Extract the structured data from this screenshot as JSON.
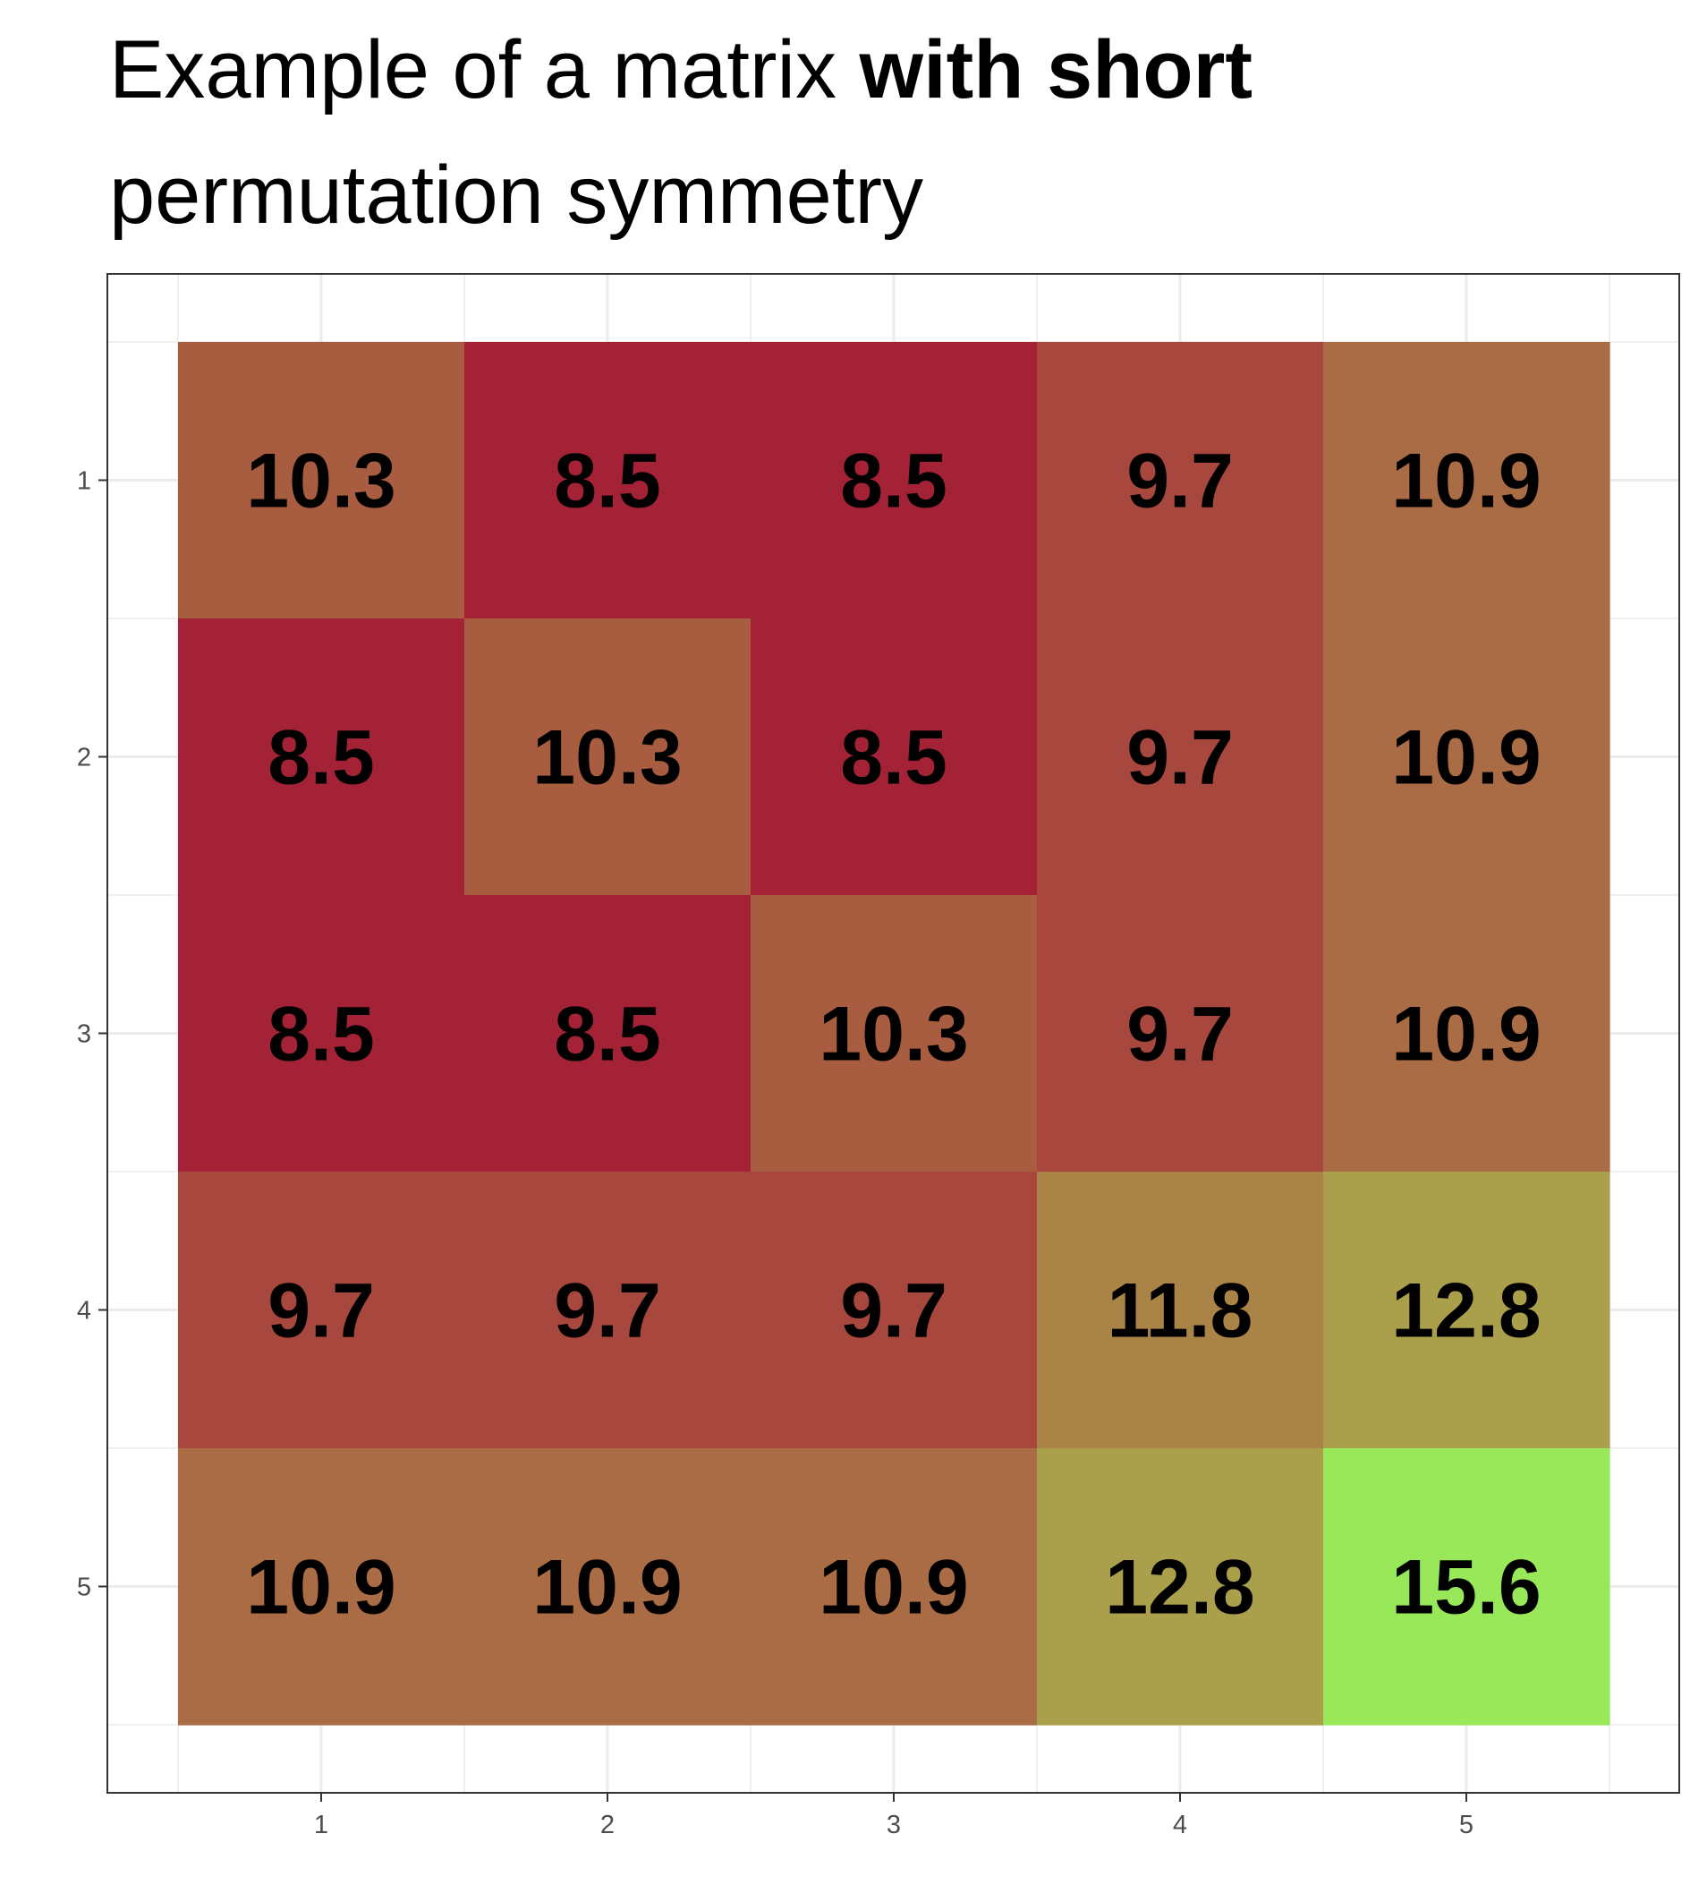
{
  "title": {
    "part1": "Example of a matrix ",
    "part2_bold": "with short",
    "line2": "permutation symmetry"
  },
  "chart_data": {
    "type": "heatmap",
    "title": "Example of a matrix with short permutation symmetry",
    "xlabel": "",
    "ylabel": "",
    "x_categories": [
      "1",
      "2",
      "3",
      "4",
      "5"
    ],
    "y_categories": [
      "1",
      "2",
      "3",
      "4",
      "5"
    ],
    "values": [
      [
        10.3,
        8.5,
        8.5,
        9.7,
        10.9
      ],
      [
        8.5,
        10.3,
        8.5,
        9.7,
        10.9
      ],
      [
        8.5,
        8.5,
        10.3,
        9.7,
        10.9
      ],
      [
        9.7,
        9.7,
        9.7,
        11.8,
        12.8
      ],
      [
        10.9,
        10.9,
        10.9,
        12.8,
        15.6
      ]
    ],
    "labels": [
      [
        "10.3",
        "8.5",
        "8.5",
        "9.7",
        "10.9"
      ],
      [
        "8.5",
        "10.3",
        "8.5",
        "9.7",
        "10.9"
      ],
      [
        "8.5",
        "8.5",
        "10.3",
        "9.7",
        "10.9"
      ],
      [
        "9.7",
        "9.7",
        "9.7",
        "11.8",
        "12.8"
      ],
      [
        "10.9",
        "10.9",
        "10.9",
        "12.8",
        "15.6"
      ]
    ],
    "color_scale": {
      "8.5": "#A32236",
      "9.7": "#A7473D",
      "10.3": "#A85C40",
      "10.9": "#A96C44",
      "11.8": "#AA8446",
      "12.8": "#AAA04B",
      "15.6": "#98E859"
    },
    "y_axis_order": "top-to-bottom",
    "grid": true,
    "legend": "none"
  }
}
